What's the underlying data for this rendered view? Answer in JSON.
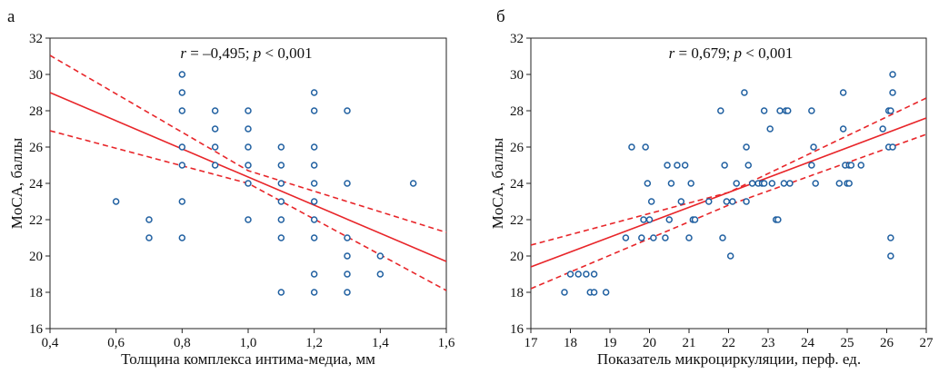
{
  "colors": {
    "points": "#1f5fa0",
    "line": "#e8262a",
    "axis": "#222222"
  },
  "chart_data": [
    {
      "type": "scatter",
      "panel_label": "а",
      "stat": {
        "r_symbol": "r",
        "r_text": " = –0,495; ",
        "p_symbol": "p",
        "p_text": " < 0,001"
      },
      "xlabel": "Толщина комплекса интима-медиа, мм",
      "ylabel": "MoCA, баллы",
      "xlim": [
        0.4,
        1.6
      ],
      "ylim": [
        16,
        32
      ],
      "xticks": [
        "0,4",
        "0,6",
        "0,8",
        "1,0",
        "1,2",
        "1,4",
        "1,6"
      ],
      "yticks": [
        "16",
        "18",
        "20",
        "22",
        "24",
        "26",
        "28",
        "30",
        "32"
      ],
      "grid": false,
      "points": [
        [
          0.6,
          23
        ],
        [
          0.7,
          22
        ],
        [
          0.7,
          21
        ],
        [
          0.8,
          30
        ],
        [
          0.8,
          29
        ],
        [
          0.8,
          28
        ],
        [
          0.8,
          26
        ],
        [
          0.8,
          25
        ],
        [
          0.8,
          23
        ],
        [
          0.8,
          21
        ],
        [
          0.9,
          28
        ],
        [
          0.9,
          27
        ],
        [
          0.9,
          26
        ],
        [
          0.9,
          25
        ],
        [
          1.0,
          28
        ],
        [
          1.0,
          27
        ],
        [
          1.0,
          26
        ],
        [
          1.0,
          25
        ],
        [
          1.0,
          24
        ],
        [
          1.0,
          22
        ],
        [
          1.1,
          26
        ],
        [
          1.1,
          25
        ],
        [
          1.1,
          24
        ],
        [
          1.1,
          23
        ],
        [
          1.1,
          22
        ],
        [
          1.1,
          21
        ],
        [
          1.1,
          18
        ],
        [
          1.2,
          29
        ],
        [
          1.2,
          28
        ],
        [
          1.2,
          26
        ],
        [
          1.2,
          25
        ],
        [
          1.2,
          24
        ],
        [
          1.2,
          23
        ],
        [
          1.2,
          22
        ],
        [
          1.2,
          21
        ],
        [
          1.2,
          19
        ],
        [
          1.2,
          18
        ],
        [
          1.3,
          28
        ],
        [
          1.3,
          24
        ],
        [
          1.3,
          21
        ],
        [
          1.3,
          20
        ],
        [
          1.3,
          19
        ],
        [
          1.3,
          18
        ],
        [
          1.4,
          20
        ],
        [
          1.4,
          19
        ],
        [
          1.5,
          24
        ]
      ],
      "regression": {
        "x": [
          0.4,
          1.6
        ],
        "y": [
          29.0,
          19.7
        ]
      },
      "ci_upper": {
        "x": [
          0.4,
          1.0,
          1.6
        ],
        "y": [
          31.05,
          24.7,
          21.3
        ]
      },
      "ci_lower": {
        "x": [
          0.4,
          1.0,
          1.6
        ],
        "y": [
          26.9,
          24.0,
          18.1
        ]
      }
    },
    {
      "type": "scatter",
      "panel_label": "б",
      "stat": {
        "r_symbol": "r",
        "r_text": " = 0,679; ",
        "p_symbol": "p",
        "p_text": " < 0,001"
      },
      "xlabel": "Показатель микроциркуляции, перф. ед.",
      "ylabel": "MoCA, баллы",
      "xlim": [
        17,
        27
      ],
      "ylim": [
        16,
        32
      ],
      "xticks": [
        "17",
        "18",
        "19",
        "20",
        "21",
        "22",
        "23",
        "24",
        "25",
        "26",
        "27"
      ],
      "yticks": [
        "16",
        "18",
        "20",
        "22",
        "24",
        "26",
        "28",
        "30",
        "32"
      ],
      "grid": false,
      "points": [
        [
          17.85,
          18
        ],
        [
          18.0,
          19
        ],
        [
          18.2,
          19
        ],
        [
          18.4,
          19
        ],
        [
          18.6,
          19
        ],
        [
          18.5,
          18
        ],
        [
          18.6,
          18
        ],
        [
          18.9,
          18
        ],
        [
          19.4,
          21
        ],
        [
          19.55,
          26
        ],
        [
          19.8,
          21
        ],
        [
          19.85,
          22
        ],
        [
          19.9,
          26
        ],
        [
          19.95,
          24
        ],
        [
          20.0,
          22
        ],
        [
          20.05,
          23
        ],
        [
          20.1,
          21
        ],
        [
          20.4,
          21
        ],
        [
          20.45,
          25
        ],
        [
          20.5,
          22
        ],
        [
          20.55,
          24
        ],
        [
          20.7,
          25
        ],
        [
          20.8,
          23
        ],
        [
          20.9,
          25
        ],
        [
          21.0,
          21
        ],
        [
          21.05,
          24
        ],
        [
          21.1,
          22
        ],
        [
          21.15,
          22
        ],
        [
          21.5,
          23
        ],
        [
          21.8,
          28
        ],
        [
          21.85,
          21
        ],
        [
          21.9,
          25
        ],
        [
          21.95,
          23
        ],
        [
          22.05,
          20
        ],
        [
          22.1,
          23
        ],
        [
          22.2,
          24
        ],
        [
          22.4,
          29
        ],
        [
          22.45,
          26
        ],
        [
          22.45,
          23
        ],
        [
          22.5,
          25
        ],
        [
          22.6,
          24
        ],
        [
          22.75,
          24
        ],
        [
          22.85,
          24
        ],
        [
          22.9,
          24
        ],
        [
          22.9,
          28
        ],
        [
          23.05,
          27
        ],
        [
          23.1,
          24
        ],
        [
          23.2,
          22
        ],
        [
          23.25,
          22
        ],
        [
          23.3,
          28
        ],
        [
          23.4,
          24
        ],
        [
          23.45,
          28
        ],
        [
          23.5,
          28
        ],
        [
          23.55,
          24
        ],
        [
          24.1,
          28
        ],
        [
          24.1,
          25
        ],
        [
          24.15,
          26
        ],
        [
          24.2,
          24
        ],
        [
          24.8,
          24
        ],
        [
          24.9,
          29
        ],
        [
          24.9,
          27
        ],
        [
          24.95,
          25
        ],
        [
          25.0,
          24
        ],
        [
          25.05,
          24
        ],
        [
          25.05,
          25
        ],
        [
          25.1,
          25
        ],
        [
          25.35,
          25
        ],
        [
          25.9,
          27
        ],
        [
          26.05,
          28
        ],
        [
          26.05,
          26
        ],
        [
          26.1,
          28
        ],
        [
          26.1,
          21
        ],
        [
          26.1,
          20
        ],
        [
          26.15,
          29
        ],
        [
          26.15,
          26
        ],
        [
          26.15,
          30
        ]
      ],
      "regression": {
        "x": [
          17,
          27
        ],
        "y": [
          19.4,
          27.6
        ]
      },
      "ci_upper": {
        "x": [
          17,
          22,
          27
        ],
        "y": [
          20.6,
          23.5,
          28.7
        ]
      },
      "ci_lower": {
        "x": [
          17,
          22,
          27
        ],
        "y": [
          18.2,
          22.8,
          26.7
        ]
      }
    }
  ]
}
